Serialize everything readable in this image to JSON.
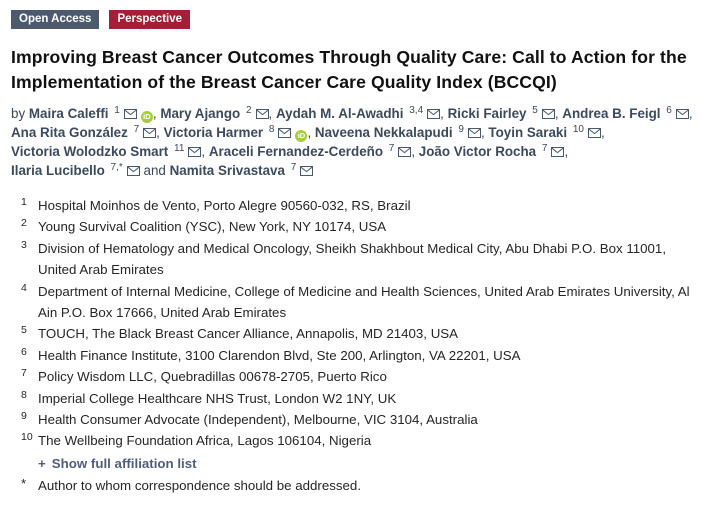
{
  "badges": [
    {
      "label": "Open Access",
      "bg": "#4d5a6e"
    },
    {
      "label": "Perspective",
      "bg": "#a41e35"
    }
  ],
  "title": "Improving Breast Cancer Outcomes Through Quality Care: Call to Action for the Implementation of the Breast Cancer Care Quality Index (BCCQI)",
  "byline": {
    "prefix": "by",
    "and_label": "and",
    "orcid_glyph": "iD",
    "authors": [
      {
        "name": "Maira Caleffi",
        "sup": "1",
        "email": true,
        "orcid": true,
        "break_after": false
      },
      {
        "name": "Mary Ajango",
        "sup": "2",
        "email": true,
        "orcid": false,
        "break_after": false
      },
      {
        "name": "Aydah M. Al-Awadhi",
        "sup": "3,4",
        "email": true,
        "orcid": false,
        "break_after": false
      },
      {
        "name": "Ricki Fairley",
        "sup": "5",
        "email": true,
        "orcid": false,
        "break_after": false
      },
      {
        "name": "Andrea B. Feigl",
        "sup": "6",
        "email": true,
        "orcid": false,
        "break_after": true
      },
      {
        "name": "Ana Rita González",
        "sup": "7",
        "email": true,
        "orcid": false,
        "break_after": false
      },
      {
        "name": "Victoria Harmer",
        "sup": "8",
        "email": true,
        "orcid": true,
        "break_after": false
      },
      {
        "name": "Naveena Nekkalapudi",
        "sup": "9",
        "email": true,
        "orcid": false,
        "break_after": false
      },
      {
        "name": "Toyin Saraki",
        "sup": "10",
        "email": true,
        "orcid": false,
        "break_after": true
      },
      {
        "name": "Victoria Wolodzko Smart",
        "sup": "11",
        "email": true,
        "orcid": false,
        "break_after": false
      },
      {
        "name": "Araceli Fernandez-Cerdeño",
        "sup": "7",
        "email": true,
        "orcid": false,
        "break_after": false
      },
      {
        "name": "João Victor Rocha",
        "sup": "7",
        "email": true,
        "orcid": false,
        "break_after": true
      },
      {
        "name": "Ilaria Lucibello",
        "sup": "7,*",
        "email": true,
        "orcid": false,
        "break_after": false
      },
      {
        "name": "Namita Srivastava",
        "sup": "7",
        "email": true,
        "orcid": false,
        "break_after": false
      }
    ]
  },
  "affiliations": [
    {
      "num": "1",
      "text": "Hospital Moinhos de Vento, Porto Alegre 90560-032, RS, Brazil"
    },
    {
      "num": "2",
      "text": "Young Survival Coalition (YSC), New York, NY 10174, USA"
    },
    {
      "num": "3",
      "text": "Division of Hematology and Medical Oncology, Sheikh Shakhbout Medical City, Abu Dhabi P.O. Box 11001, United Arab Emirates"
    },
    {
      "num": "4",
      "text": "Department of Internal Medicine, College of Medicine and Health Sciences, United Arab Emirates University, Al Ain P.O. Box 17666, United Arab Emirates"
    },
    {
      "num": "5",
      "text": "TOUCH, The Black Breast Cancer Alliance, Annapolis, MD 21403, USA"
    },
    {
      "num": "6",
      "text": "Health Finance Institute, 3100 Clarendon Blvd, Ste 200, Arlington, VA 22201, USA"
    },
    {
      "num": "7",
      "text": "Policy Wisdom LLC, Quebradillas 00678-2705, Puerto Rico"
    },
    {
      "num": "8",
      "text": "Imperial College Healthcare NHS Trust, London W2 1NY, UK"
    },
    {
      "num": "9",
      "text": "Health Consumer Advocate (Independent), Melbourne, VIC 3104, Australia"
    },
    {
      "num": "10",
      "text": "The Wellbeing Foundation Africa, Lagos 106104, Nigeria"
    }
  ],
  "show_affiliation_link": {
    "icon": "+",
    "label": "Show full affiliation list"
  },
  "correspondence": {
    "marker": "*",
    "text": "Author to whom correspondence should be addressed."
  },
  "colors": {
    "open_access_badge": "#4d5a6e",
    "perspective_badge": "#a41e35",
    "orcid_green": "#a6ce39",
    "author_text": "#3b4a5c",
    "link_text": "#515d7d"
  }
}
